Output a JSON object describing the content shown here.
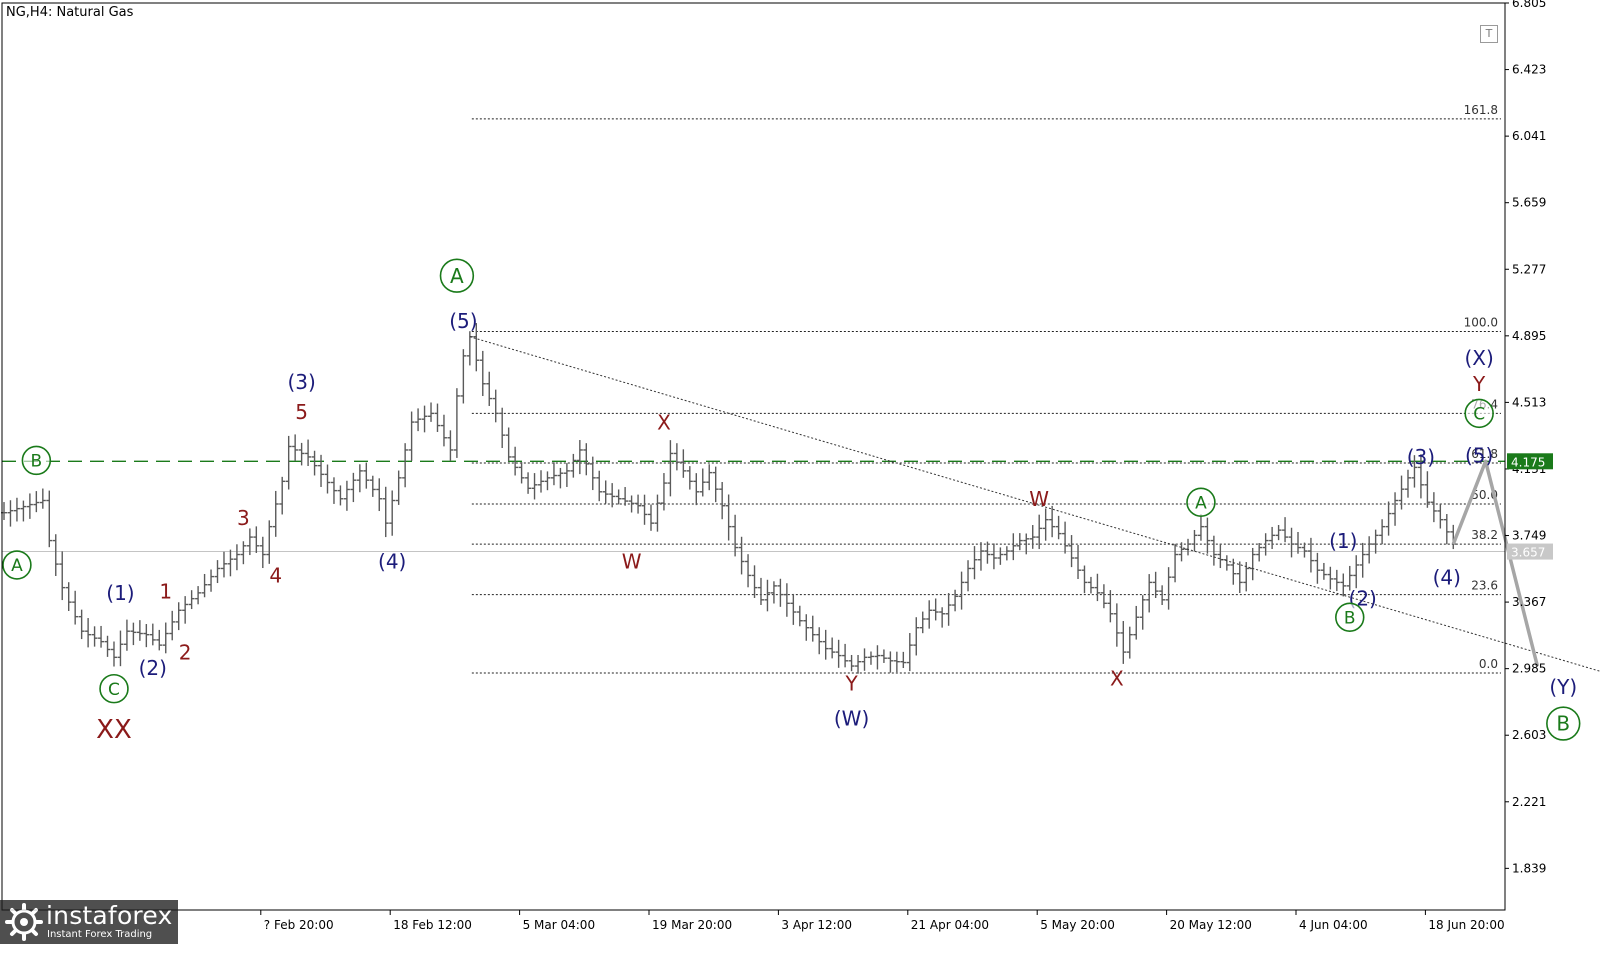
{
  "chart_title": "NG,H4:  Natural Gas",
  "chart_data": {
    "type": "bar",
    "symbol": "NG",
    "timeframe": "H4",
    "instrument": "Natural Gas",
    "ylim": [
      1.6,
      6.805
    ],
    "y_ticks": [
      "6.805",
      "6.423",
      "6.041",
      "5.659",
      "5.277",
      "4.895",
      "4.513",
      "4.131",
      "3.749",
      "3.367",
      "2.985",
      "2.603",
      "2.221",
      "1.839"
    ],
    "x_ticks": [
      "? Feb 20:00",
      "18 Feb 12:00",
      "5 Mar 04:00",
      "19 Mar 20:00",
      "3 Apr 12:00",
      "21 Apr 04:00",
      "5 May 20:00",
      "20 May 12:00",
      "4 Jun 04:00",
      "18 Jun 20:00"
    ],
    "x_tick_bars": [
      40,
      60,
      80,
      100,
      120,
      140,
      160,
      180,
      200,
      220
    ],
    "bar_count": 254,
    "price_path": [
      [
        0,
        3.88
      ],
      [
        6,
        3.95
      ],
      [
        7,
        3.72
      ],
      [
        9,
        3.45
      ],
      [
        12,
        3.2
      ],
      [
        15,
        3.14
      ],
      [
        17,
        3.05
      ],
      [
        19,
        3.2
      ],
      [
        22,
        3.18
      ],
      [
        24,
        3.12
      ],
      [
        27,
        3.32
      ],
      [
        30,
        3.42
      ],
      [
        33,
        3.56
      ],
      [
        36,
        3.64
      ],
      [
        38,
        3.74
      ],
      [
        40,
        3.64
      ],
      [
        41,
        3.8
      ],
      [
        43,
        4.06
      ],
      [
        44,
        4.26
      ],
      [
        47,
        4.2
      ],
      [
        49,
        4.1
      ],
      [
        52,
        3.96
      ],
      [
        55,
        4.12
      ],
      [
        58,
        3.96
      ],
      [
        59,
        3.82
      ],
      [
        61,
        4.08
      ],
      [
        63,
        4.4
      ],
      [
        66,
        4.45
      ],
      [
        69,
        4.24
      ],
      [
        70,
        4.55
      ],
      [
        71,
        4.78
      ],
      [
        72,
        4.89
      ],
      [
        74,
        4.62
      ],
      [
        76,
        4.45
      ],
      [
        78,
        4.2
      ],
      [
        81,
        4.02
      ],
      [
        84,
        4.08
      ],
      [
        87,
        4.12
      ],
      [
        89,
        4.24
      ],
      [
        92,
        4.0
      ],
      [
        95,
        3.96
      ],
      [
        98,
        3.92
      ],
      [
        100,
        3.82
      ],
      [
        102,
        4.05
      ],
      [
        103,
        4.22
      ],
      [
        105,
        4.12
      ],
      [
        107,
        4.0
      ],
      [
        109,
        4.11
      ],
      [
        111,
        3.92
      ],
      [
        113,
        3.68
      ],
      [
        115,
        3.52
      ],
      [
        117,
        3.38
      ],
      [
        119,
        3.46
      ],
      [
        121,
        3.36
      ],
      [
        123,
        3.26
      ],
      [
        125,
        3.18
      ],
      [
        127,
        3.1
      ],
      [
        129,
        3.06
      ],
      [
        131,
        3.0
      ],
      [
        133,
        3.05
      ],
      [
        135,
        3.06
      ],
      [
        137,
        3.03
      ],
      [
        139,
        3.02
      ],
      [
        141,
        3.22
      ],
      [
        143,
        3.32
      ],
      [
        145,
        3.3
      ],
      [
        147,
        3.4
      ],
      [
        149,
        3.56
      ],
      [
        151,
        3.66
      ],
      [
        153,
        3.62
      ],
      [
        155,
        3.66
      ],
      [
        157,
        3.72
      ],
      [
        159,
        3.74
      ],
      [
        161,
        3.84
      ],
      [
        163,
        3.76
      ],
      [
        165,
        3.62
      ],
      [
        167,
        3.48
      ],
      [
        169,
        3.42
      ],
      [
        171,
        3.3
      ],
      [
        173,
        3.08
      ],
      [
        175,
        3.28
      ],
      [
        177,
        3.48
      ],
      [
        179,
        3.38
      ],
      [
        181,
        3.64
      ],
      [
        183,
        3.7
      ],
      [
        185,
        3.8
      ],
      [
        187,
        3.64
      ],
      [
        189,
        3.58
      ],
      [
        191,
        3.48
      ],
      [
        193,
        3.64
      ],
      [
        195,
        3.72
      ],
      [
        197,
        3.78
      ],
      [
        199,
        3.7
      ],
      [
        201,
        3.66
      ],
      [
        203,
        3.55
      ],
      [
        205,
        3.5
      ],
      [
        207,
        3.46
      ],
      [
        209,
        3.58
      ],
      [
        211,
        3.7
      ],
      [
        213,
        3.8
      ],
      [
        215,
        3.95
      ],
      [
        217,
        4.08
      ],
      [
        218,
        4.14
      ],
      [
        220,
        3.94
      ],
      [
        222,
        3.84
      ],
      [
        224,
        3.7
      ]
    ],
    "projection": [
      [
        224,
        3.7
      ],
      [
        229,
        4.175
      ],
      [
        237,
        3.0
      ]
    ],
    "trend_line": {
      "from": [
        72,
        4.89
      ],
      "to": [
        247,
        2.97
      ]
    },
    "fib_levels": [
      {
        "label": "161.8",
        "value": 6.14
      },
      {
        "label": "100.0",
        "value": 4.92
      },
      {
        "label": "76.4",
        "value": 4.45
      },
      {
        "label": "61.8",
        "value": 4.165
      },
      {
        "label": "50.0",
        "value": 3.93
      },
      {
        "label": "38.2",
        "value": 3.7
      },
      {
        "label": "23.6",
        "value": 3.41
      },
      {
        "label": "0.0",
        "value": 2.96
      }
    ],
    "fib_start_bar": 72,
    "horizontal_level": {
      "value": 4.175,
      "label": "4.175",
      "color": "#1a7a1a"
    },
    "current_price": {
      "value": 3.657,
      "label": "3.657"
    },
    "wave_labels": [
      {
        "text": "A",
        "circled": true,
        "color": "#1a7a1a",
        "bar": 2,
        "price": 3.58,
        "size": "sm"
      },
      {
        "text": "B",
        "circled": true,
        "color": "#1a7a1a",
        "bar": 5,
        "price": 4.18,
        "size": "sm"
      },
      {
        "text": "C",
        "circled": true,
        "color": "#1a7a1a",
        "bar": 17,
        "price": 2.87,
        "size": "sm"
      },
      {
        "text": "XX",
        "circled": false,
        "color": "#8b1a1a",
        "bar": 17,
        "price": 2.64,
        "size": "lg"
      },
      {
        "text": "(1)",
        "circled": false,
        "color": "#1c1c7a",
        "bar": 18,
        "price": 3.42,
        "size": "md"
      },
      {
        "text": "(2)",
        "circled": false,
        "color": "#1c1c7a",
        "bar": 23,
        "price": 2.99,
        "size": "md"
      },
      {
        "text": "1",
        "circled": false,
        "color": "#8b1a1a",
        "bar": 25,
        "price": 3.43,
        "size": "md"
      },
      {
        "text": "2",
        "circled": false,
        "color": "#8b1a1a",
        "bar": 28,
        "price": 3.08,
        "size": "md"
      },
      {
        "text": "3",
        "circled": false,
        "color": "#8b1a1a",
        "bar": 37,
        "price": 3.85,
        "size": "md"
      },
      {
        "text": "4",
        "circled": false,
        "color": "#8b1a1a",
        "bar": 42,
        "price": 3.52,
        "size": "md"
      },
      {
        "text": "(3)",
        "circled": false,
        "color": "#1c1c7a",
        "bar": 46,
        "price": 4.63,
        "size": "md"
      },
      {
        "text": "5",
        "circled": false,
        "color": "#8b1a1a",
        "bar": 46,
        "price": 4.46,
        "size": "md"
      },
      {
        "text": "(4)",
        "circled": false,
        "color": "#1c1c7a",
        "bar": 60,
        "price": 3.6,
        "size": "md"
      },
      {
        "text": "A",
        "circled": true,
        "color": "#1a7a1a",
        "bar": 70,
        "price": 5.24,
        "size": "md"
      },
      {
        "text": "(5)",
        "circled": false,
        "color": "#1c1c7a",
        "bar": 71,
        "price": 4.98,
        "size": "md"
      },
      {
        "text": "X",
        "circled": false,
        "color": "#8b1a1a",
        "bar": 102,
        "price": 4.4,
        "size": "md"
      },
      {
        "text": "W",
        "circled": false,
        "color": "#8b1a1a",
        "bar": 97,
        "price": 3.6,
        "size": "md"
      },
      {
        "text": "Y",
        "circled": false,
        "color": "#8b1a1a",
        "bar": 131,
        "price": 2.9,
        "size": "md"
      },
      {
        "text": "(W)",
        "circled": false,
        "color": "#1c1c7a",
        "bar": 131,
        "price": 2.7,
        "size": "md"
      },
      {
        "text": "W",
        "circled": false,
        "color": "#8b1a1a",
        "bar": 160,
        "price": 3.96,
        "size": "md"
      },
      {
        "text": "X",
        "circled": false,
        "color": "#8b1a1a",
        "bar": 172,
        "price": 2.93,
        "size": "md"
      },
      {
        "text": "A",
        "circled": true,
        "color": "#1a7a1a",
        "bar": 185,
        "price": 3.94,
        "size": "sm"
      },
      {
        "text": "(1)",
        "circled": false,
        "color": "#1c1c7a",
        "bar": 207,
        "price": 3.72,
        "size": "md"
      },
      {
        "text": "(2)",
        "circled": false,
        "color": "#1c1c7a",
        "bar": 210,
        "price": 3.39,
        "size": "md"
      },
      {
        "text": "B",
        "circled": true,
        "color": "#1a7a1a",
        "bar": 208,
        "price": 3.28,
        "size": "sm"
      },
      {
        "text": "(3)",
        "circled": false,
        "color": "#1c1c7a",
        "bar": 219,
        "price": 4.2,
        "size": "md"
      },
      {
        "text": "(4)",
        "circled": false,
        "color": "#1c1c7a",
        "bar": 223,
        "price": 3.51,
        "size": "md"
      },
      {
        "text": "(5)",
        "circled": false,
        "color": "#1c1c7a",
        "bar": 228,
        "price": 4.21,
        "size": "md"
      },
      {
        "text": "C",
        "circled": true,
        "color": "#1a7a1a",
        "bar": 228,
        "price": 4.45,
        "size": "sm"
      },
      {
        "text": "Y",
        "circled": false,
        "color": "#8b1a1a",
        "bar": 228,
        "price": 4.62,
        "size": "md"
      },
      {
        "text": "(X)",
        "circled": false,
        "color": "#1c1c7a",
        "bar": 228,
        "price": 4.77,
        "size": "md"
      },
      {
        "text": "(Y)",
        "circled": false,
        "color": "#1c1c7a",
        "bar": 241,
        "price": 2.88,
        "size": "md"
      },
      {
        "text": "B",
        "circled": true,
        "color": "#1a7a1a",
        "bar": 241,
        "price": 2.67,
        "size": "md"
      }
    ]
  },
  "watermark": {
    "brand": "instaforex",
    "tagline": "Instant Forex Trading"
  },
  "toolbar": {
    "template_button": "T"
  },
  "colors": {
    "bars": "#5a5a5a",
    "grid": "#000000",
    "green": "#1a7a1a",
    "wave_blue": "#1c1c7a",
    "wave_red": "#8b1a1a",
    "projection": "#a6a6a6"
  }
}
